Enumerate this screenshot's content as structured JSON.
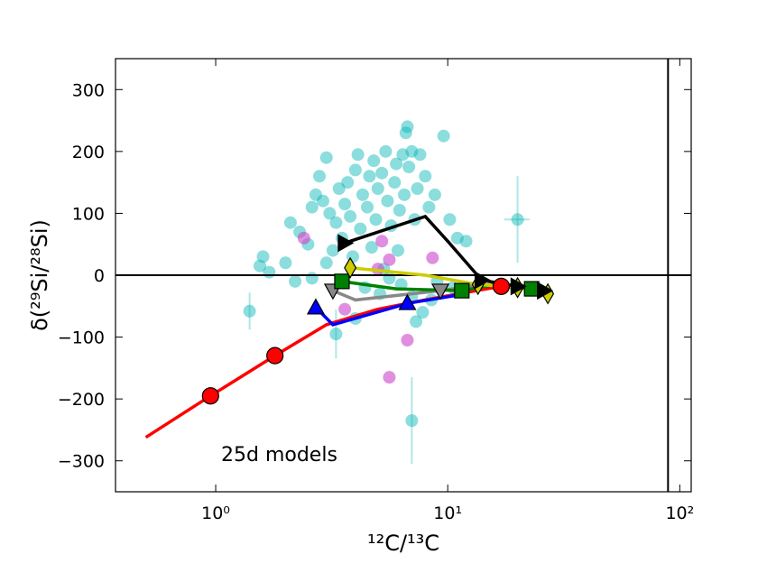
{
  "chart_data": {
    "type": "scatter",
    "xlabel": "¹²C/¹³C",
    "ylabel": "δ(²⁹Si/²⁸Si)",
    "annotation": "25d models",
    "xscale": "log",
    "xlim": [
      0.37,
      112
    ],
    "ylim": [
      -350,
      350
    ],
    "xticks": [
      {
        "value": 1,
        "label": "10⁰"
      },
      {
        "value": 10,
        "label": "10¹"
      },
      {
        "value": 100,
        "label": "10²"
      }
    ],
    "yticks": [
      {
        "value": -300,
        "label": "−300"
      },
      {
        "value": -200,
        "label": "−200"
      },
      {
        "value": -100,
        "label": "−100"
      },
      0,
      100,
      200,
      300
    ],
    "hlines": [
      0
    ],
    "vlines": [
      89
    ],
    "points": [
      {
        "color": "#00b3b3",
        "alpha": 0.45,
        "x": [
          1.55,
          1.6,
          2.1,
          2.3,
          2.5,
          2.6,
          2.7,
          2.8,
          2.9,
          3.0,
          3.1,
          3.3,
          3.4,
          3.5,
          3.6,
          3.7,
          3.8,
          4.0,
          4.1,
          4.2,
          4.3,
          4.5,
          4.6,
          4.8,
          4.9,
          5.0,
          5.2,
          5.4,
          5.5,
          5.7,
          5.9,
          6.0,
          6.2,
          6.5,
          6.6,
          6.8,
          7.0,
          7.2,
          7.4,
          7.6,
          8.0,
          8.3,
          8.8,
          9.6,
          10.2,
          11.0,
          12.0,
          2.2,
          2.6,
          3.0,
          3.9,
          4.4,
          5.1,
          6.3,
          7.0,
          7.8,
          8.5,
          9.0,
          10.5,
          6.1,
          5.3,
          4.7,
          3.2,
          2.0,
          1.7,
          4.0,
          7.3,
          6.4,
          6.7,
          5.6
        ],
        "y": [
          15,
          30,
          85,
          70,
          50,
          110,
          130,
          160,
          120,
          190,
          100,
          85,
          140,
          60,
          115,
          150,
          95,
          170,
          195,
          75,
          130,
          110,
          160,
          185,
          90,
          140,
          165,
          200,
          120,
          80,
          150,
          180,
          105,
          130,
          230,
          175,
          200,
          90,
          140,
          195,
          160,
          110,
          130,
          225,
          90,
          60,
          55,
          -10,
          -5,
          20,
          30,
          -20,
          -30,
          -15,
          -35,
          -60,
          -40,
          -10,
          -20,
          40,
          10,
          45,
          40,
          20,
          5,
          -70,
          -75,
          195,
          240,
          -5
        ]
      },
      {
        "color": "#00b3b3",
        "alpha": 0.45,
        "x": [
          20,
          1.4,
          7,
          3.3
        ],
        "y": [
          90,
          -58,
          -235,
          -95
        ],
        "yerr": [
          70,
          30,
          70,
          40
        ],
        "xerr": [
          2.5,
          null,
          null,
          null
        ]
      },
      {
        "color": "#cc44cc",
        "alpha": 0.6,
        "x": [
          2.4,
          5.2,
          5.6,
          5.0,
          8.6,
          3.6,
          6.7,
          5.6
        ],
        "y": [
          60,
          55,
          25,
          10,
          28,
          -55,
          -105,
          -165
        ]
      }
    ],
    "models": [
      {
        "color": "#ff0000",
        "marker": "o",
        "x": [
          0.5,
          0.95,
          1.8,
          3,
          5,
          8,
          12,
          17,
          25
        ],
        "y": [
          -262,
          -195,
          -130,
          -80,
          -55,
          -40,
          -28,
          -18,
          -22
        ],
        "marker_x": [
          0.95,
          1.8,
          17
        ],
        "marker_y": [
          -195,
          -130,
          -18
        ]
      },
      {
        "color": "#0000ff",
        "marker": "^",
        "x": [
          2.7,
          3.2,
          6.8,
          12
        ],
        "y": [
          -52,
          -80,
          -45,
          -30
        ],
        "marker_x": [
          2.7,
          6.7
        ],
        "marker_y": [
          -52,
          -45
        ]
      },
      {
        "color": "#888888",
        "marker": "v",
        "x": [
          3.2,
          4,
          9.3,
          14,
          22
        ],
        "y": [
          -25,
          -40,
          -25,
          -15,
          -22
        ],
        "marker_x": [
          3.2,
          9.3
        ],
        "marker_y": [
          -25,
          -25
        ]
      },
      {
        "color": "#008000",
        "marker": "s",
        "x": [
          3.5,
          6,
          11.5,
          16,
          23
        ],
        "y": [
          -10,
          -22,
          -25,
          -15,
          -22
        ],
        "marker_x": [
          3.5,
          11.5,
          23
        ],
        "marker_y": [
          -10,
          -25,
          -22
        ]
      },
      {
        "color": "#cccc00",
        "marker": "d",
        "x": [
          3.8,
          8,
          13.5,
          20,
          27
        ],
        "y": [
          12,
          0,
          -15,
          -20,
          -30
        ],
        "marker_x": [
          3.8,
          13.5,
          20,
          27
        ],
        "marker_y": [
          12,
          -15,
          -20,
          -30
        ]
      },
      {
        "color": "#000000",
        "marker": ">",
        "x": [
          3.6,
          8,
          10,
          14,
          20,
          26
        ],
        "y": [
          52,
          95,
          55,
          -8,
          -18,
          -25
        ],
        "marker_x": [
          3.6,
          14,
          20,
          26
        ],
        "marker_y": [
          52,
          -8,
          -18,
          -25
        ]
      }
    ]
  }
}
